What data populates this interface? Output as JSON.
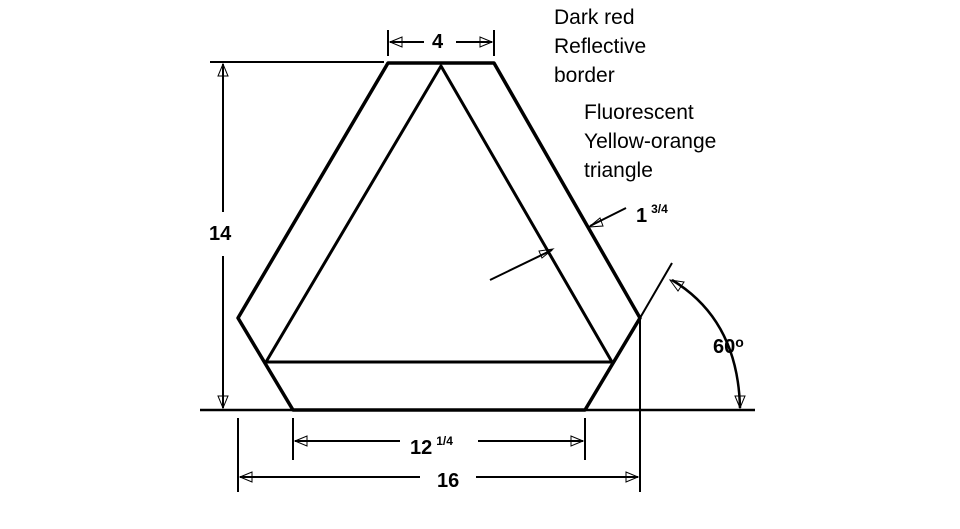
{
  "labels": {
    "border_line1": "Dark red",
    "border_line2": "Reflective",
    "border_line3": "border",
    "triangle_line1": "Fluorescent",
    "triangle_line2": "Yellow-orange",
    "triangle_line3": "triangle"
  },
  "dimensions": {
    "top_width": "4",
    "height": "14",
    "border_width_whole": "1",
    "border_width_frac": "3/4",
    "inner_bottom_whole": "12",
    "inner_bottom_frac": "1/4",
    "overall_width": "16",
    "angle": "60",
    "angle_unit": "o"
  }
}
